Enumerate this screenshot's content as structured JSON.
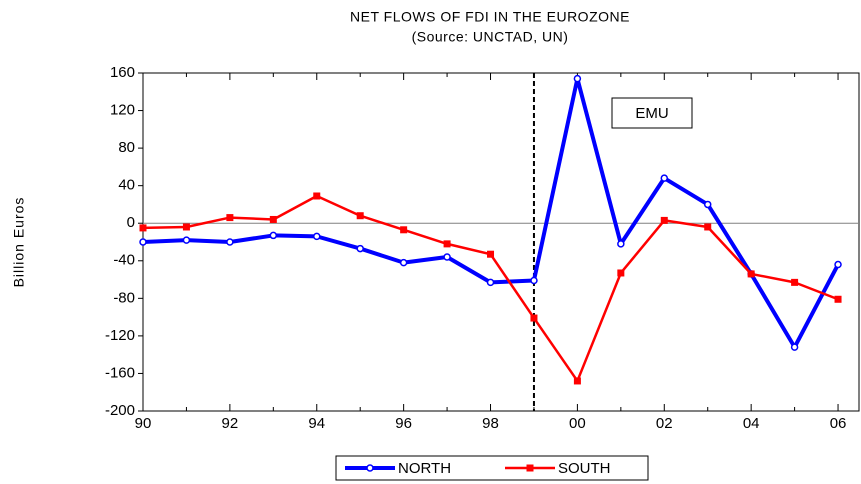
{
  "chart_data": {
    "type": "line",
    "title": "NET FLOWS OF FDI IN THE EUROZONE",
    "subtitle": "(Source: UNCTAD, UN)",
    "y_label": "Billion Euros",
    "annotation": "EMU",
    "divider_index": 9,
    "categories": [
      "90",
      null,
      "92",
      null,
      "94",
      null,
      "96",
      null,
      "98",
      null,
      "00",
      null,
      "02",
      null,
      "04",
      null,
      "06"
    ],
    "series": [
      {
        "name": "NORTH",
        "color": "#0000ff",
        "marker": "circle",
        "values": [
          -20,
          -18,
          -20,
          -13,
          -14,
          -27,
          -42,
          -36,
          -63,
          -61,
          154,
          -22,
          48,
          20,
          -54,
          -132,
          -44
        ]
      },
      {
        "name": "SOUTH",
        "color": "#ff0000",
        "marker": "square",
        "values": [
          -5,
          -4,
          6,
          4,
          29,
          8,
          -7,
          -22,
          -33,
          -101,
          -168,
          -53,
          3,
          -4,
          -54,
          -63,
          -81
        ]
      }
    ],
    "ylim": [
      -200,
      160
    ],
    "yticks": [
      -200,
      -160,
      -120,
      -80,
      -40,
      0,
      40,
      80,
      120,
      160
    ],
    "zero_line": true
  }
}
